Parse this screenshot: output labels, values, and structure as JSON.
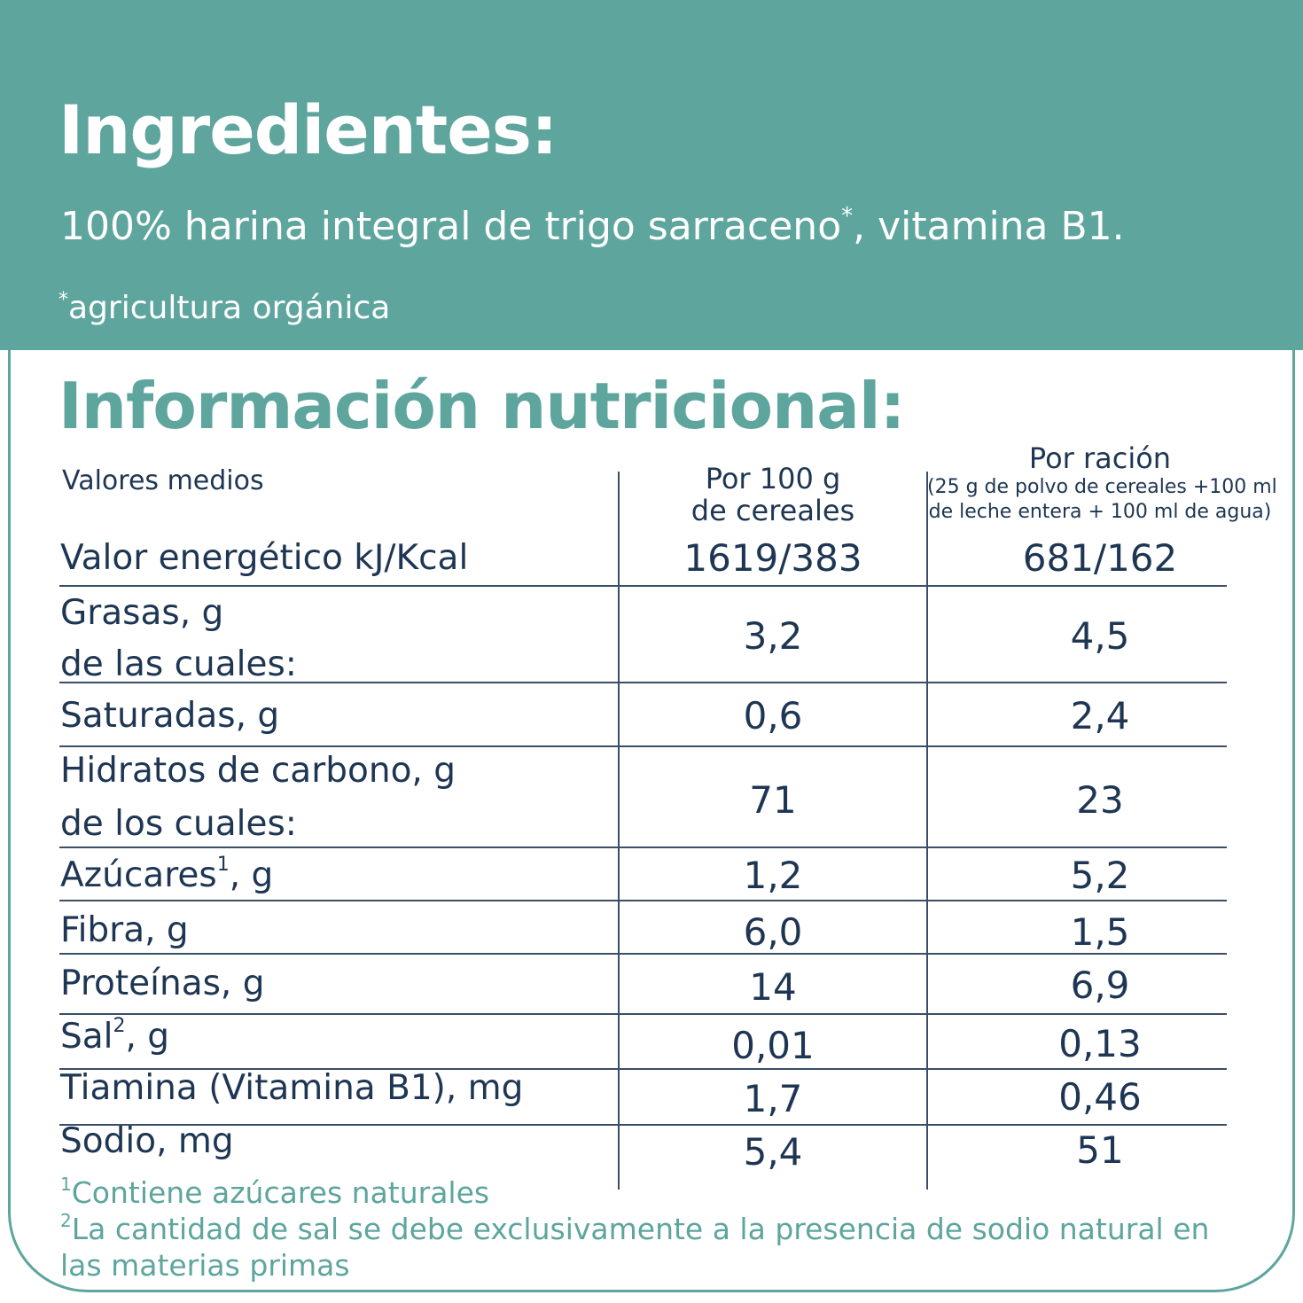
{
  "ingredients": {
    "title": "Ingredientes:",
    "text_before": "100% harina integral de trigo sarraceno",
    "marker": "*",
    "text_after": ", vitamina B1.",
    "note_marker": "*",
    "note": "agricultura orgánica"
  },
  "nutrition": {
    "title": "Información nutricional:",
    "headers": {
      "label": "Valores medios",
      "col1_line1": "Por 100 g",
      "col1_line2": "de cereales",
      "col2_title": "Por ración",
      "col2_line1": "(25 g de polvo de cereales +100 ml",
      "col2_line2": "de leche entera + 100 ml de agua)"
    },
    "rows": [
      {
        "label": "Valor energético kJ/Kcal",
        "per100": "1619/383",
        "perServing": "681/162"
      },
      {
        "label": "Grasas, g",
        "sublabel": "de las cuales:",
        "per100": "3,2",
        "perServing": "4,5"
      },
      {
        "label": "Saturadas, g",
        "per100": "0,6",
        "perServing": "2,4"
      },
      {
        "label": "Hidratos de carbono, g",
        "sublabel": "de los cuales:",
        "per100": "71",
        "perServing": "23"
      },
      {
        "label": "Azúcares",
        "sup": "1",
        "suffix": ", g",
        "per100": "1,2",
        "perServing": "5,2"
      },
      {
        "label": "Fibra, g",
        "per100": "6,0",
        "perServing": "1,5"
      },
      {
        "label": "Proteínas, g",
        "per100": "14",
        "perServing": "6,9"
      },
      {
        "label": "Sal",
        "sup": "2",
        "suffix": ", g",
        "per100": "0,01",
        "perServing": "0,13"
      },
      {
        "label": "Tiamina (Vitamina B1), mg",
        "per100": "1,7",
        "perServing": "0,46"
      },
      {
        "label": "Sodio, mg",
        "per100": "5,4",
        "perServing": "51"
      }
    ],
    "footnotes": [
      {
        "marker": "1",
        "text": "Contiene azúcares naturales"
      },
      {
        "marker": "2",
        "text": "La cantidad de sal se debe exclusivamente a la presencia de sodio natural en",
        "continuation": "las materias primas"
      }
    ]
  },
  "colors": {
    "accent": "#5ea59e",
    "text": "#1e3653",
    "rule": "#3a4e66"
  }
}
